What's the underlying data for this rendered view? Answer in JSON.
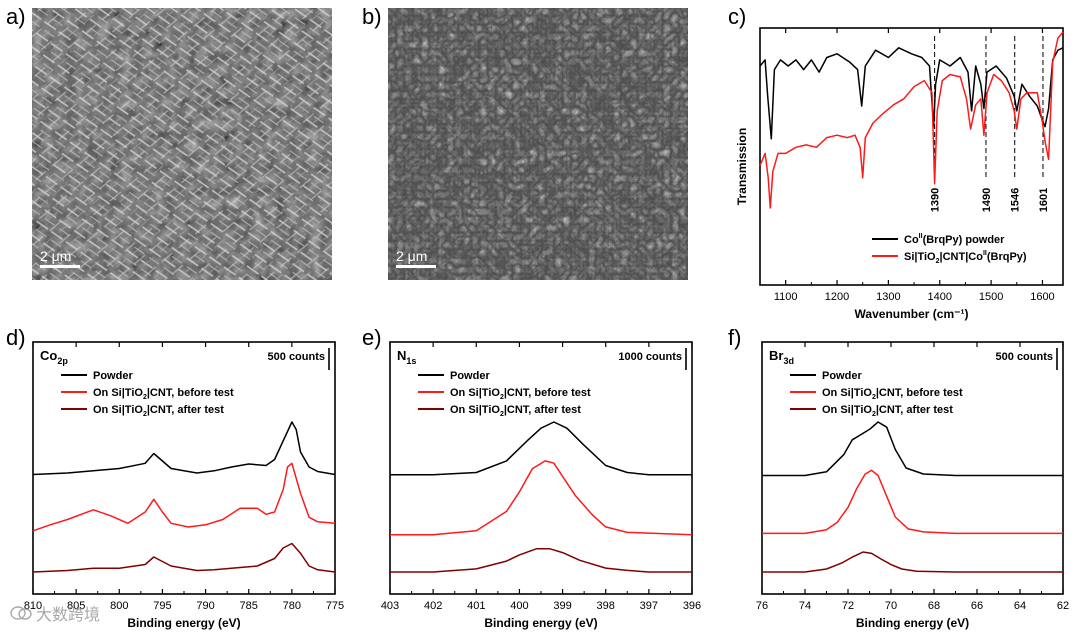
{
  "panel_labels": [
    "a)",
    "b)",
    "c)",
    "d)",
    "e)",
    "f)"
  ],
  "sem_images": [
    {
      "scale_bar": "2 μm",
      "description_icon": "sem-nanowires-image"
    },
    {
      "scale_bar": "2 μm",
      "description_icon": "sem-cnt-network-image"
    }
  ],
  "watermark": {
    "text": "大数跨境"
  },
  "colors": {
    "powder": "#000000",
    "before": "#ff1a1a",
    "after": "#800000",
    "axis": "#000000"
  },
  "chart_data": [
    {
      "id": "c",
      "type": "line",
      "title": "",
      "xlabel": "Wavenumber (cm⁻¹)",
      "ylabel": "Transmission",
      "xlim": [
        1050,
        1640
      ],
      "xreversed": false,
      "xticks": [
        1100,
        1200,
        1300,
        1400,
        1500,
        1600
      ],
      "annotations": [
        {
          "x": 1390,
          "label": "1390"
        },
        {
          "x": 1490,
          "label": "1490"
        },
        {
          "x": 1546,
          "label": "1546"
        },
        {
          "x": 1601,
          "label": "1601"
        }
      ],
      "legend_position": "bottom-right",
      "series": [
        {
          "name": "Co(BrqPy) powder",
          "legend_parts": [
            "Co",
            "II",
            "(BrqPy) powder"
          ],
          "color": "#000000",
          "offset": 0.72,
          "x": [
            1050,
            1060,
            1065,
            1072,
            1078,
            1090,
            1105,
            1120,
            1135,
            1150,
            1165,
            1180,
            1200,
            1225,
            1240,
            1248,
            1255,
            1275,
            1300,
            1320,
            1345,
            1365,
            1380,
            1388,
            1392,
            1400,
            1420,
            1440,
            1455,
            1462,
            1470,
            1480,
            1486,
            1492,
            1510,
            1530,
            1545,
            1550,
            1560,
            1575,
            1590,
            1600,
            1605,
            1612,
            1620,
            1630,
            1640
          ],
          "y": [
            0.05,
            0.1,
            -0.2,
            -0.55,
            0.02,
            0.1,
            0.05,
            0.1,
            0.02,
            0.1,
            0.0,
            0.12,
            0.15,
            0.08,
            0.02,
            -0.28,
            0.05,
            0.18,
            0.12,
            0.2,
            0.15,
            0.12,
            0.05,
            -0.45,
            -0.1,
            0.1,
            0.05,
            0.12,
            0.0,
            -0.32,
            0.05,
            -0.1,
            -0.3,
            0.0,
            0.05,
            -0.05,
            -0.2,
            -0.32,
            -0.1,
            -0.2,
            -0.28,
            -0.4,
            -0.45,
            -0.3,
            0.1,
            0.18,
            0.2
          ]
        },
        {
          "name": "Si|TiO2|CNT|Co(BrqPy)",
          "legend_parts": [
            "Si|TiO",
            "2",
            "|CNT|Co",
            "II",
            "(BrqPy)"
          ],
          "color": "#ff1a1a",
          "offset": 0.0,
          "x": [
            1050,
            1060,
            1066,
            1070,
            1075,
            1085,
            1100,
            1120,
            1140,
            1160,
            1180,
            1200,
            1220,
            1235,
            1245,
            1250,
            1255,
            1270,
            1290,
            1310,
            1330,
            1350,
            1370,
            1385,
            1390,
            1395,
            1405,
            1420,
            1440,
            1452,
            1460,
            1470,
            1480,
            1486,
            1492,
            1505,
            1520,
            1535,
            1545,
            1550,
            1558,
            1570,
            1590,
            1600,
            1605,
            1612,
            1620,
            1630,
            1640
          ],
          "y": [
            -0.05,
            0.05,
            -0.15,
            -0.4,
            -0.1,
            0.05,
            0.05,
            0.1,
            0.12,
            0.1,
            0.18,
            0.2,
            0.18,
            0.2,
            0.1,
            -0.15,
            0.18,
            0.3,
            0.38,
            0.45,
            0.5,
            0.6,
            0.65,
            0.55,
            -0.2,
            0.4,
            0.65,
            0.7,
            0.68,
            0.5,
            0.25,
            0.45,
            0.5,
            0.2,
            0.55,
            0.7,
            0.65,
            0.55,
            0.4,
            0.25,
            0.5,
            0.55,
            0.55,
            0.3,
            0.15,
            0.0,
            0.8,
            1.0,
            1.05
          ]
        }
      ]
    },
    {
      "id": "d",
      "type": "line",
      "corner_label_main": "Co",
      "corner_label_sub": "2p",
      "scale_label": "500 counts",
      "xlabel": "Binding energy (eV)",
      "xlim": [
        810,
        775
      ],
      "xticks": [
        810,
        805,
        800,
        795,
        790,
        785,
        780,
        775
      ],
      "legend_position": "top-left",
      "series": [
        {
          "name": "Powder",
          "legend_parts": [
            "Powder"
          ],
          "color": "#000000",
          "offset": 1.3,
          "x": [
            810,
            806,
            803,
            800,
            797,
            796,
            794,
            791,
            789,
            787,
            785,
            783,
            782,
            781,
            780,
            779.5,
            779,
            778,
            777,
            775
          ],
          "y": [
            0.0,
            0.02,
            0.05,
            0.08,
            0.15,
            0.28,
            0.08,
            0.02,
            0.05,
            0.1,
            0.14,
            0.12,
            0.2,
            0.45,
            0.7,
            0.6,
            0.3,
            0.1,
            0.04,
            0.0
          ]
        },
        {
          "name": "On Si|TiO2|CNT, before test",
          "legend_parts": [
            "On Si|TiO",
            "2",
            "|CNT, before test"
          ],
          "color": "#ff1a1a",
          "offset": 0.55,
          "x": [
            810,
            808,
            806,
            803,
            801,
            799,
            797,
            796,
            795,
            794,
            792,
            790,
            788,
            786,
            784,
            783,
            782,
            781,
            780.5,
            780,
            779,
            778,
            777,
            775
          ],
          "y": [
            0.0,
            0.08,
            0.15,
            0.28,
            0.2,
            0.1,
            0.25,
            0.42,
            0.25,
            0.1,
            0.05,
            0.08,
            0.15,
            0.3,
            0.3,
            0.22,
            0.25,
            0.55,
            0.85,
            0.9,
            0.5,
            0.18,
            0.12,
            0.1
          ]
        },
        {
          "name": "On Si|TiO2|CNT, after test",
          "legend_parts": [
            "On Si|TiO",
            "2",
            "|CNT, after test"
          ],
          "color": "#800000",
          "offset": 0.0,
          "x": [
            810,
            806,
            803,
            800,
            797,
            796,
            794,
            791,
            789,
            786,
            784,
            782,
            781,
            780,
            779,
            778,
            777,
            775
          ],
          "y": [
            0.0,
            0.02,
            0.05,
            0.05,
            0.1,
            0.2,
            0.08,
            0.02,
            0.03,
            0.06,
            0.08,
            0.18,
            0.32,
            0.38,
            0.25,
            0.08,
            0.03,
            0.0
          ]
        }
      ]
    },
    {
      "id": "e",
      "type": "line",
      "corner_label_main": "N",
      "corner_label_sub": "1s",
      "scale_label": "1000 counts",
      "xlabel": "Binding energy (eV)",
      "xlim": [
        403,
        396
      ],
      "xticks": [
        403,
        402,
        401,
        400,
        399,
        398,
        397,
        396
      ],
      "legend_position": "top-left",
      "series": [
        {
          "name": "Powder",
          "legend_parts": [
            "Powder"
          ],
          "color": "#000000",
          "offset": 1.25,
          "x": [
            403,
            402,
            401,
            400.3,
            399.8,
            399.5,
            399.2,
            398.9,
            398.5,
            398.0,
            397.5,
            397,
            396
          ],
          "y": [
            0.0,
            0.0,
            0.03,
            0.18,
            0.45,
            0.6,
            0.68,
            0.6,
            0.38,
            0.12,
            0.03,
            0.0,
            0.0
          ]
        },
        {
          "name": "On Si|TiO2|CNT, before test",
          "legend_parts": [
            "On Si|TiO",
            "2",
            "|CNT, before test"
          ],
          "color": "#ff1a1a",
          "offset": 0.48,
          "x": [
            403,
            402,
            401,
            400.3,
            400.0,
            399.7,
            399.4,
            399.2,
            399.0,
            398.7,
            398.3,
            398.0,
            397.5,
            397,
            396
          ],
          "y": [
            0.0,
            0.0,
            0.05,
            0.3,
            0.55,
            0.85,
            0.95,
            0.92,
            0.75,
            0.5,
            0.25,
            0.1,
            0.03,
            0.02,
            0.0
          ]
        },
        {
          "name": "On Si|TiO2|CNT, after test",
          "legend_parts": [
            "On Si|TiO",
            "2",
            "|CNT, after test"
          ],
          "color": "#800000",
          "offset": 0.0,
          "x": [
            403,
            402,
            401,
            400.3,
            400.0,
            399.6,
            399.3,
            399.0,
            398.6,
            398.0,
            397.5,
            397,
            396
          ],
          "y": [
            0.0,
            0.0,
            0.04,
            0.14,
            0.22,
            0.3,
            0.3,
            0.25,
            0.15,
            0.05,
            0.02,
            0.0,
            0.0
          ]
        }
      ]
    },
    {
      "id": "f",
      "type": "line",
      "corner_label_main": "Br",
      "corner_label_sub": "3d",
      "scale_label": "500 counts",
      "xlabel": "Binding energy (eV)",
      "xlim": [
        76,
        62
      ],
      "xticks": [
        76,
        74,
        72,
        70,
        68,
        66,
        64,
        62
      ],
      "legend_position": "top-left",
      "series": [
        {
          "name": "Powder",
          "legend_parts": [
            "Powder"
          ],
          "color": "#000000",
          "offset": 1.3,
          "x": [
            76,
            74,
            73,
            72.2,
            71.8,
            71.4,
            71.0,
            70.6,
            70.2,
            69.8,
            69.3,
            68.5,
            67,
            64,
            62
          ],
          "y": [
            0.0,
            0.0,
            0.05,
            0.28,
            0.48,
            0.55,
            0.62,
            0.72,
            0.65,
            0.35,
            0.1,
            0.02,
            0.0,
            0.0,
            0.0
          ]
        },
        {
          "name": "On Si|TiO2|CNT, before test",
          "legend_parts": [
            "On Si|TiO",
            "2",
            "|CNT, before test"
          ],
          "color": "#ff1a1a",
          "offset": 0.52,
          "x": [
            76,
            74,
            73,
            72.5,
            72.0,
            71.6,
            71.2,
            70.9,
            70.6,
            70.2,
            69.8,
            69.2,
            68.5,
            67,
            64,
            62
          ],
          "y": [
            0.0,
            0.0,
            0.05,
            0.15,
            0.35,
            0.6,
            0.8,
            0.85,
            0.78,
            0.5,
            0.22,
            0.06,
            0.02,
            0.0,
            0.0,
            0.0
          ]
        },
        {
          "name": "On Si|TiO2|CNT, after test",
          "legend_parts": [
            "On Si|TiO",
            "2",
            "|CNT, after test"
          ],
          "color": "#800000",
          "offset": 0.0,
          "x": [
            76,
            74,
            73,
            72.3,
            71.8,
            71.3,
            70.9,
            70.5,
            70.0,
            69.5,
            68.8,
            67,
            64,
            62
          ],
          "y": [
            0.0,
            0.0,
            0.04,
            0.12,
            0.2,
            0.27,
            0.25,
            0.18,
            0.1,
            0.04,
            0.01,
            0.0,
            0.0,
            0.0
          ]
        }
      ]
    }
  ]
}
